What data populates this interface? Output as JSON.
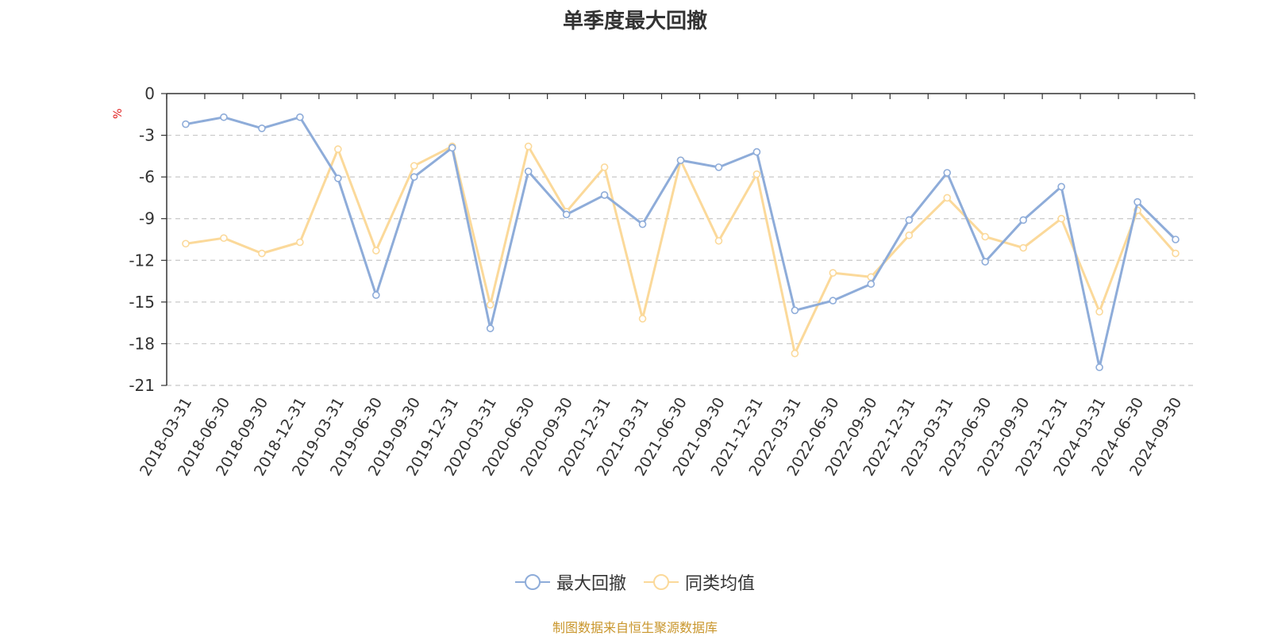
{
  "colors": {
    "series1": "#8eacd9",
    "series2": "#fbd99a",
    "grid": "#c8c8c8",
    "axis": "#333333",
    "unit": "#e02020",
    "source": "#c9962c"
  },
  "chart_data": {
    "type": "line",
    "title": "单季度最大回撤",
    "ylabel": "%",
    "ylim": [
      -21,
      0
    ],
    "yticks": [
      0,
      -3,
      -6,
      -9,
      -12,
      -15,
      -18,
      -21
    ],
    "grid": true,
    "legend_position": "bottom-center",
    "categories": [
      "2018-03-31",
      "2018-06-30",
      "2018-09-30",
      "2018-12-31",
      "2019-03-31",
      "2019-06-30",
      "2019-09-30",
      "2019-12-31",
      "2020-03-31",
      "2020-06-30",
      "2020-09-30",
      "2020-12-31",
      "2021-03-31",
      "2021-06-30",
      "2021-09-30",
      "2021-12-31",
      "2022-03-31",
      "2022-06-30",
      "2022-09-30",
      "2022-12-31",
      "2023-03-31",
      "2023-06-30",
      "2023-09-30",
      "2023-12-31",
      "2024-03-31",
      "2024-06-30",
      "2024-09-30"
    ],
    "series": [
      {
        "name": "最大回撤",
        "values": [
          -2.2,
          -1.7,
          -2.5,
          -1.7,
          -6.1,
          -14.5,
          -6.0,
          -3.9,
          -16.9,
          -5.6,
          -8.7,
          -7.3,
          -9.4,
          -4.8,
          -5.3,
          -4.2,
          -15.6,
          -14.9,
          -13.7,
          -9.1,
          -5.7,
          -12.1,
          -9.1,
          -6.7,
          -19.7,
          -7.8,
          -10.5
        ]
      },
      {
        "name": "同类均值",
        "values": [
          -10.8,
          -10.4,
          -11.5,
          -10.7,
          -4.0,
          -11.3,
          -5.2,
          -3.8,
          -15.2,
          -3.8,
          -8.5,
          -5.3,
          -16.2,
          -4.8,
          -10.6,
          -5.8,
          -18.7,
          -12.9,
          -13.2,
          -10.2,
          -7.5,
          -10.3,
          -11.1,
          -9.0,
          -15.7,
          -8.4,
          -11.5
        ]
      }
    ]
  },
  "footer": {
    "source": "制图数据来自恒生聚源数据库"
  }
}
